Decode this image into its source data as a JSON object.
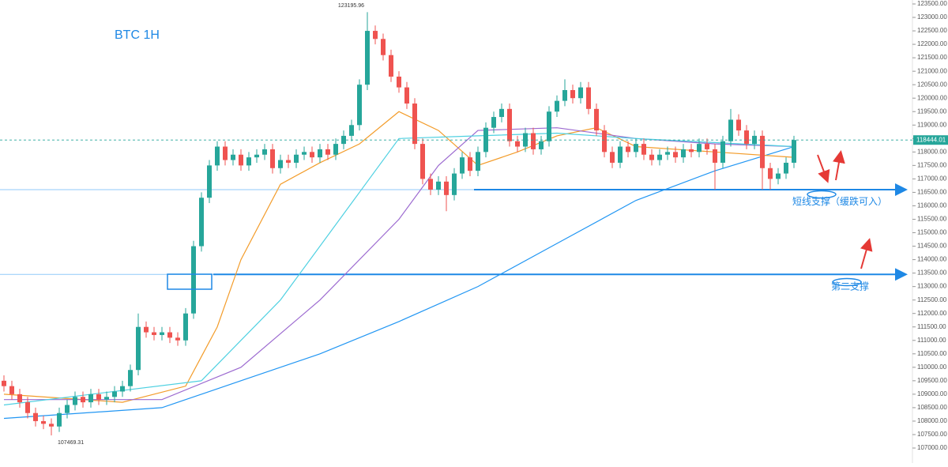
{
  "chart_data": {
    "type": "candlestick",
    "title": "BTC 1H",
    "up_color": "#26a69a",
    "down_color": "#ef5350",
    "open": [
      109500,
      109300,
      109000,
      108700,
      108300,
      108000,
      107900,
      107800,
      108300,
      108600,
      108900,
      108700,
      109000,
      108800,
      108900,
      109100,
      109300,
      109900,
      111500,
      111300,
      111200,
      111300,
      111100,
      111000,
      112000,
      114500,
      116300,
      117500,
      118200,
      117700,
      117900,
      117500,
      117800,
      117900,
      118100,
      117400,
      117700,
      117600,
      117900,
      118000,
      117800,
      118100,
      117900,
      118300,
      118600,
      119000,
      120500,
      122500,
      122200,
      121600,
      120800,
      120400,
      119800,
      118300,
      117000,
      116600,
      116900,
      116400,
      117200,
      117800,
      117300,
      118000,
      118900,
      119300,
      119600,
      118400,
      118200,
      118700,
      118100,
      118400,
      119500,
      119900,
      120300,
      120000,
      120400,
      119600,
      118800,
      118000,
      117600,
      118200,
      118000,
      118300,
      117900,
      117700,
      117900,
      118000,
      117800,
      118100,
      118000,
      118300,
      118100,
      117600,
      118400,
      119200,
      118800,
      118300,
      118600,
      117400,
      117000,
      117200,
      117600
    ],
    "high": [
      109700,
      109500,
      109200,
      108900,
      108500,
      108200,
      108100,
      108500,
      108800,
      109100,
      109100,
      109200,
      109200,
      109100,
      109300,
      109500,
      110100,
      112000,
      111700,
      111500,
      111500,
      111500,
      111300,
      112200,
      114700,
      116500,
      117700,
      118400,
      118400,
      118100,
      118100,
      118000,
      118100,
      118300,
      118300,
      117900,
      117900,
      118100,
      118200,
      118200,
      118300,
      118300,
      118500,
      118800,
      119200,
      120700,
      123195.96,
      122700,
      122400,
      121800,
      121000,
      120600,
      120000,
      118500,
      117200,
      117100,
      117100,
      117400,
      118000,
      118000,
      118200,
      119100,
      119500,
      119800,
      119800,
      118600,
      118900,
      118900,
      118600,
      119700,
      120100,
      120700,
      120500,
      120600,
      120600,
      119800,
      119000,
      118200,
      118400,
      118400,
      118500,
      118500,
      118100,
      118100,
      118200,
      118200,
      118300,
      118300,
      118500,
      118500,
      118300,
      118600,
      119600,
      119400,
      119000,
      118800,
      118800,
      117600,
      117400,
      117800,
      118600
    ],
    "low": [
      109100,
      108800,
      108500,
      108100,
      107800,
      107700,
      107469.31,
      107600,
      108100,
      108400,
      108500,
      108500,
      108600,
      108600,
      108700,
      108900,
      109100,
      109700,
      111100,
      111000,
      111000,
      110900,
      110800,
      110800,
      111800,
      114300,
      116100,
      117300,
      117500,
      117500,
      117300,
      117300,
      117600,
      117700,
      117200,
      117200,
      117400,
      117400,
      117700,
      117600,
      117600,
      117700,
      117700,
      118100,
      118400,
      118800,
      120300,
      122000,
      121400,
      120600,
      120200,
      119600,
      118100,
      116800,
      116400,
      116400,
      115800,
      116200,
      117000,
      117100,
      117100,
      117800,
      118700,
      119100,
      118200,
      118000,
      118000,
      117900,
      117900,
      118200,
      119300,
      119700,
      119800,
      119800,
      119400,
      118600,
      117800,
      117400,
      117400,
      117800,
      117800,
      117700,
      117500,
      117500,
      117700,
      117600,
      117600,
      117800,
      117800,
      117900,
      116600,
      117400,
      118200,
      118600,
      118100,
      118100,
      116600,
      116600,
      116800,
      117000,
      117400
    ],
    "close": [
      109300,
      109000,
      108700,
      108300,
      108000,
      107900,
      107800,
      108300,
      108600,
      108900,
      108700,
      109000,
      108800,
      108900,
      109100,
      109300,
      109900,
      111500,
      111300,
      111200,
      111300,
      111100,
      111000,
      112000,
      114500,
      116300,
      117500,
      118200,
      117700,
      117900,
      117500,
      117800,
      117900,
      118100,
      117400,
      117700,
      117600,
      117900,
      118000,
      117800,
      118100,
      117900,
      118300,
      118600,
      119000,
      120500,
      122500,
      122200,
      121600,
      120800,
      120400,
      119800,
      118300,
      117000,
      116600,
      116900,
      116400,
      117200,
      117800,
      117300,
      118000,
      118900,
      119300,
      119600,
      118400,
      118200,
      118700,
      118100,
      118400,
      119500,
      119900,
      120300,
      120000,
      120400,
      119600,
      118800,
      118000,
      117600,
      118200,
      118000,
      118300,
      117900,
      117700,
      117900,
      118000,
      117800,
      118100,
      118000,
      118300,
      118100,
      117600,
      118400,
      119200,
      118800,
      118300,
      118600,
      117400,
      117000,
      117200,
      117600,
      118444.01
    ],
    "series": [
      {
        "color": "#2196f3",
        "x": [
          0,
          20,
          30,
          40,
          50,
          60,
          70,
          80,
          90,
          100
        ],
        "values": [
          108100,
          108500,
          109500,
          110500,
          111700,
          113000,
          114600,
          116200,
          117300,
          118200
        ]
      },
      {
        "color": "#f39c2a",
        "x": [
          0,
          15,
          23,
          27,
          30,
          35,
          40,
          45,
          50,
          55,
          60,
          65,
          70,
          75,
          80,
          90,
          100
        ],
        "values": [
          109000,
          108700,
          109300,
          111500,
          114000,
          116800,
          117600,
          118300,
          119500,
          118800,
          117500,
          118000,
          118600,
          118900,
          118200,
          118000,
          117800
        ]
      },
      {
        "color": "#9c6ad0",
        "x": [
          0,
          20,
          30,
          40,
          50,
          55,
          60,
          70,
          80,
          90,
          100
        ],
        "values": [
          108800,
          108800,
          110000,
          112500,
          115500,
          117500,
          118800,
          118900,
          118500,
          118300,
          118200
        ]
      },
      {
        "color": "#4dd0e1",
        "x": [
          0,
          25,
          35,
          45,
          50,
          60,
          70,
          80,
          100
        ],
        "values": [
          108600,
          109500,
          112500,
          116500,
          118500,
          118600,
          118700,
          118500,
          118200
        ]
      }
    ],
    "supports": [
      {
        "value": 116600,
        "label": "短线支撑（缓跌可入）"
      },
      {
        "value": 113450,
        "label": "第二支撑"
      }
    ],
    "ylim": [
      107000,
      123500
    ],
    "yticks": [
      {
        "value": 107000,
        "label": "107000.00"
      },
      {
        "value": 107500,
        "label": "107500.00"
      },
      {
        "value": 108000,
        "label": "108000.00"
      },
      {
        "value": 108500,
        "label": "108500.00"
      },
      {
        "value": 109000,
        "label": "109000.00"
      },
      {
        "value": 109500,
        "label": "109500.00"
      },
      {
        "value": 110000,
        "label": "110000.00"
      },
      {
        "value": 110500,
        "label": "110500.00"
      },
      {
        "value": 111000,
        "label": "111000.00"
      },
      {
        "value": 111500,
        "label": "111500.00"
      },
      {
        "value": 112000,
        "label": "112000.00"
      },
      {
        "value": 112500,
        "label": "112500.00"
      },
      {
        "value": 113000,
        "label": "113000.00"
      },
      {
        "value": 113500,
        "label": "113500.00"
      },
      {
        "value": 114000,
        "label": "114000.00"
      },
      {
        "value": 114500,
        "label": "114500.00"
      },
      {
        "value": 115000,
        "label": "115000.00"
      },
      {
        "value": 115500,
        "label": "115500.00"
      },
      {
        "value": 116000,
        "label": "116000.00"
      },
      {
        "value": 116500,
        "label": "116500.00"
      },
      {
        "value": 117000,
        "label": "117000.00"
      },
      {
        "value": 117500,
        "label": "117500.00"
      },
      {
        "value": 118000,
        "label": "118000.00"
      },
      {
        "value": 118500,
        "label": "118500.00"
      },
      {
        "value": 119000,
        "label": "119000.00"
      },
      {
        "value": 119500,
        "label": "119500.00"
      },
      {
        "value": 120000,
        "label": "120000.00"
      },
      {
        "value": 120500,
        "label": "120500.00"
      },
      {
        "value": 121000,
        "label": "121000.00"
      },
      {
        "value": 121500,
        "label": "121500.00"
      },
      {
        "value": 122000,
        "label": "122000.00"
      },
      {
        "value": 122500,
        "label": "122500.00"
      },
      {
        "value": 123000,
        "label": "123000.00"
      },
      {
        "value": 123500,
        "label": "123500.00"
      }
    ]
  }
}
